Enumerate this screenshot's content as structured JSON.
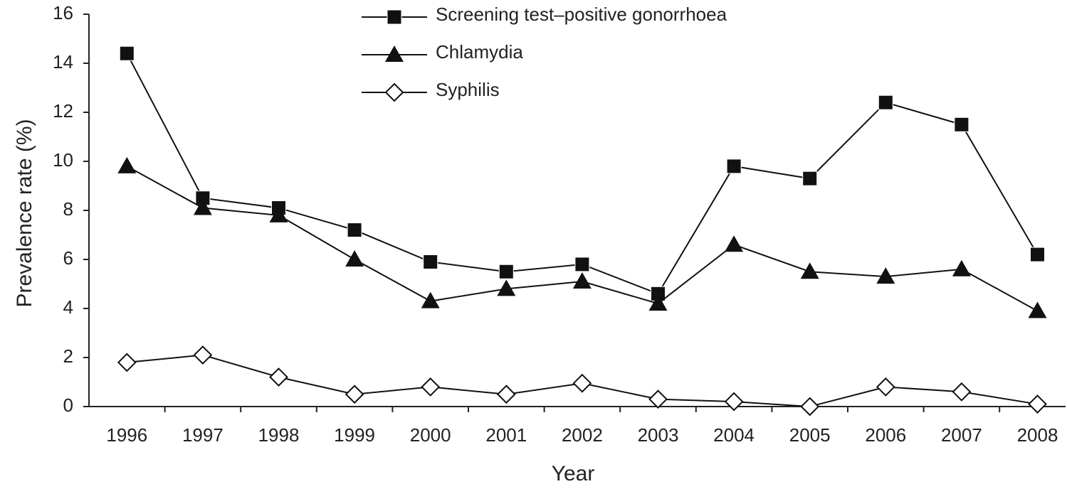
{
  "chart_data": {
    "type": "line",
    "x_label": "Year",
    "y_label": "Prevalence rate (%)",
    "categories": [
      "1996",
      "1997",
      "1998",
      "1999",
      "2000",
      "2001",
      "2002",
      "2003",
      "2004",
      "2005",
      "2006",
      "2007",
      "2008"
    ],
    "series": [
      {
        "name": "Screening test–positive gonorrhoea",
        "color": "#111111",
        "marker": "square",
        "values": [
          14.4,
          8.5,
          8.1,
          7.2,
          5.9,
          5.5,
          5.8,
          4.6,
          9.8,
          9.3,
          12.4,
          11.5,
          6.2
        ]
      },
      {
        "name": "Chlamydia",
        "color": "#111111",
        "marker": "triangle",
        "values": [
          9.8,
          8.1,
          7.8,
          6.0,
          4.3,
          4.8,
          5.1,
          4.2,
          6.6,
          5.5,
          5.3,
          5.6,
          3.9
        ]
      },
      {
        "name": "Syphilis",
        "color": "#111111",
        "marker": "diamond",
        "values": [
          1.8,
          2.1,
          1.2,
          0.5,
          0.8,
          0.5,
          0.95,
          0.3,
          0.2,
          0.0,
          0.8,
          0.6,
          0.1
        ]
      }
    ],
    "ylim": [
      0,
      16
    ],
    "yticks": [
      0,
      2,
      4,
      6,
      8,
      10,
      12,
      14,
      16
    ],
    "grid": false,
    "legend": "top"
  }
}
